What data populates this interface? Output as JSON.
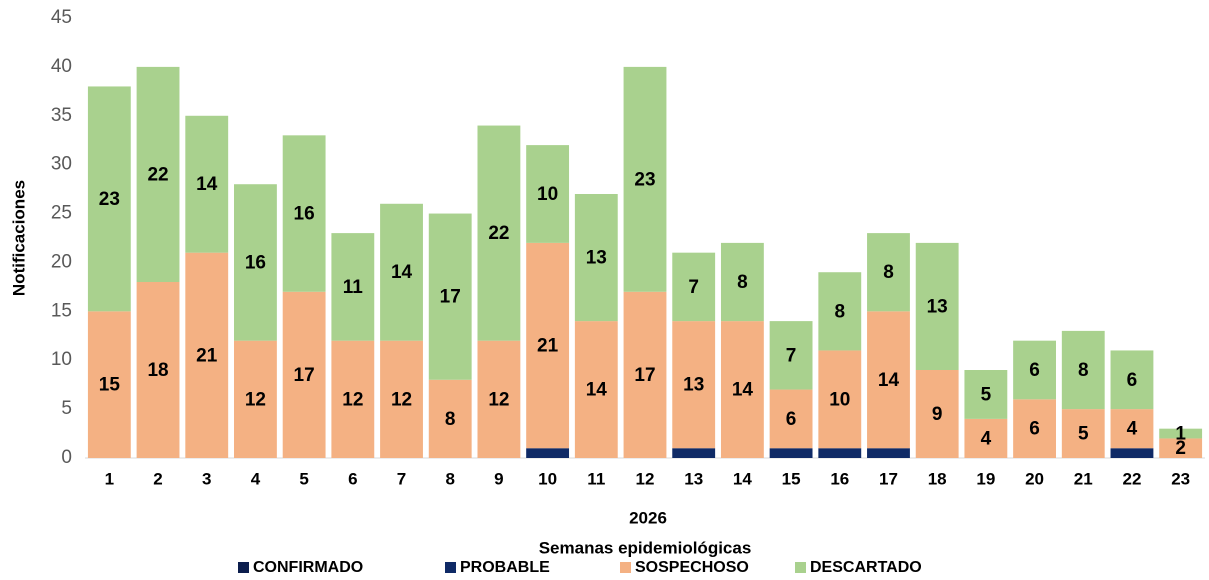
{
  "chart_data": {
    "type": "stacked_bar",
    "x_label": "2026",
    "x_label2": "Semanas epidemiológicas",
    "y_label": "Notificaciones",
    "categories": [
      "1",
      "2",
      "3",
      "4",
      "5",
      "6",
      "7",
      "8",
      "9",
      "10",
      "11",
      "12",
      "13",
      "14",
      "15",
      "16",
      "17",
      "18",
      "19",
      "20",
      "21",
      "22",
      "23"
    ],
    "series": [
      {
        "name": "CONFIRMADO",
        "color": "#0b1d4d",
        "values": [
          0,
          0,
          0,
          0,
          0,
          0,
          0,
          0,
          0,
          0,
          0,
          0,
          0,
          0,
          0,
          0,
          0,
          0,
          0,
          0,
          0,
          0,
          0
        ]
      },
      {
        "name": "PROBABLE",
        "color": "#0f2a66",
        "values": [
          0,
          0,
          0,
          0,
          0,
          0,
          0,
          0,
          0,
          1,
          0,
          0,
          1,
          0,
          1,
          1,
          1,
          0,
          0,
          0,
          0,
          1,
          0
        ]
      },
      {
        "name": "SOSPECHOSO",
        "color": "#f4b183",
        "values": [
          15,
          18,
          21,
          12,
          17,
          12,
          12,
          8,
          12,
          21,
          14,
          17,
          13,
          14,
          6,
          10,
          14,
          9,
          4,
          6,
          5,
          4,
          2
        ]
      },
      {
        "name": "DESCARTADO",
        "color": "#a9d18e",
        "values": [
          23,
          22,
          14,
          16,
          16,
          11,
          14,
          17,
          22,
          10,
          13,
          23,
          7,
          8,
          7,
          8,
          8,
          13,
          5,
          6,
          8,
          6,
          1
        ]
      }
    ],
    "ylim": [
      0,
      45
    ],
    "yticks": [
      0,
      5,
      10,
      15,
      20,
      25,
      30,
      35,
      40,
      45
    ],
    "legend": "bottom"
  }
}
